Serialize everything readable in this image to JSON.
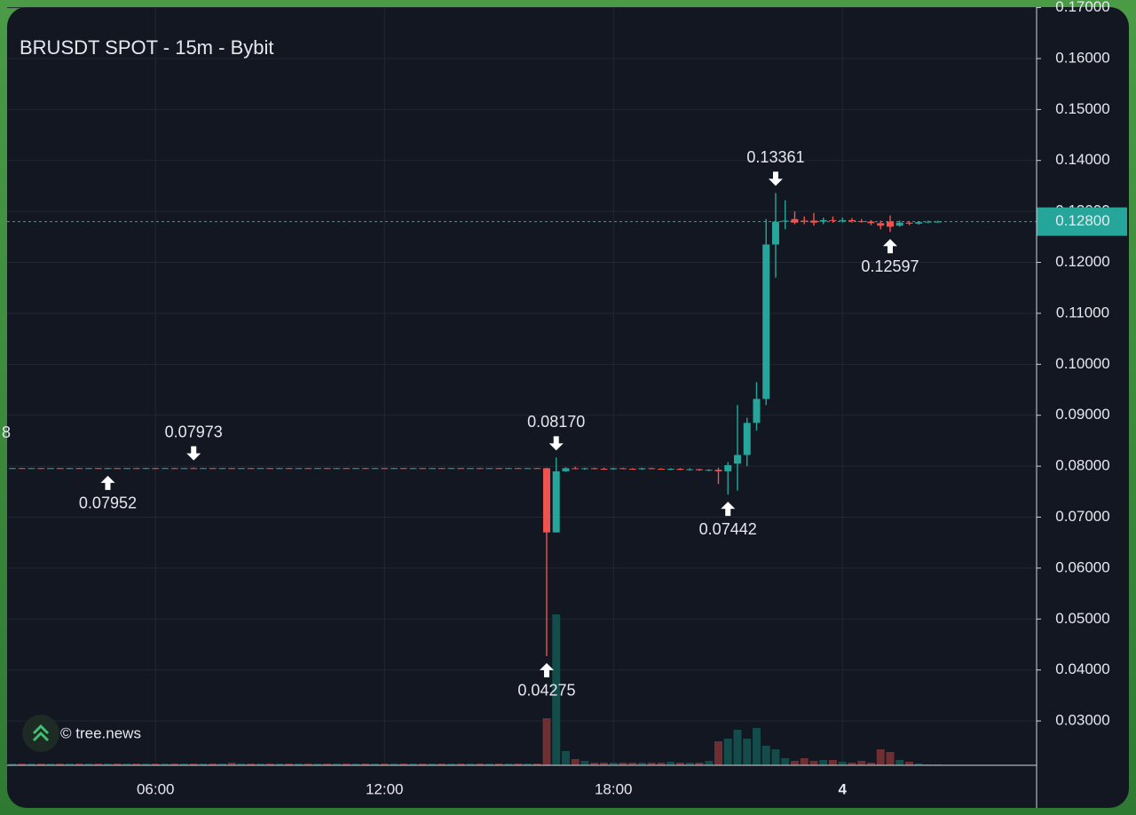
{
  "chart_data": {
    "type": "candlestick",
    "title": "BRUSDT SPOT - 15m - Bybit",
    "watermark": "© tree.news",
    "edge_label": "8",
    "up_color": "#26a69a",
    "down_color": "#ef5350",
    "volume_up_color": "#134c4a",
    "volume_down_color": "#6e2f33",
    "grid": true,
    "ylim": [
      0.0213,
      0.1701
    ],
    "yticks": [
      {
        "value": 0.03,
        "label": "0.03000"
      },
      {
        "value": 0.04,
        "label": "0.04000"
      },
      {
        "value": 0.05,
        "label": "0.05000"
      },
      {
        "value": 0.06,
        "label": "0.06000"
      },
      {
        "value": 0.07,
        "label": "0.07000"
      },
      {
        "value": 0.08,
        "label": "0.08000"
      },
      {
        "value": 0.09,
        "label": "0.09000"
      },
      {
        "value": 0.1,
        "label": "0.10000"
      },
      {
        "value": 0.11,
        "label": "0.11000"
      },
      {
        "value": 0.12,
        "label": "0.12000"
      },
      {
        "value": 0.13,
        "label": "0.13000"
      },
      {
        "value": 0.14,
        "label": "0.14000"
      },
      {
        "value": 0.15,
        "label": "0.15000"
      },
      {
        "value": 0.16,
        "label": "0.16000"
      },
      {
        "value": 0.17,
        "label": "0.17000"
      }
    ],
    "last_price": {
      "value": 0.128,
      "label": "0.12800",
      "color": "#26a69a"
    },
    "categories": [
      null,
      null,
      null,
      null,
      null,
      null,
      null,
      null,
      null,
      null,
      null,
      null,
      null,
      null,
      null,
      "06:00",
      null,
      null,
      null,
      null,
      null,
      null,
      null,
      null,
      null,
      null,
      null,
      null,
      null,
      null,
      null,
      null,
      null,
      null,
      null,
      null,
      null,
      null,
      null,
      "12:00",
      null,
      null,
      null,
      null,
      null,
      null,
      null,
      null,
      null,
      null,
      null,
      null,
      null,
      null,
      null,
      null,
      null,
      null,
      null,
      null,
      null,
      null,
      null,
      "18:00",
      null,
      null,
      null,
      null,
      null,
      null,
      null,
      null,
      null,
      null,
      null,
      null,
      null,
      null,
      null,
      null,
      null,
      null,
      null,
      null,
      null,
      null,
      null,
      "4",
      null,
      null,
      null,
      null,
      null,
      null,
      null,
      null,
      null,
      null
    ],
    "ohlc": [
      [
        0.0796,
        0.07966,
        0.07955,
        0.07962
      ],
      [
        0.07962,
        0.07966,
        0.07955,
        0.0796
      ],
      [
        0.0796,
        0.07966,
        0.07955,
        0.07962
      ],
      [
        0.07962,
        0.07966,
        0.07955,
        0.0796
      ],
      [
        0.0796,
        0.07966,
        0.07955,
        0.07962
      ],
      [
        0.07962,
        0.07966,
        0.07955,
        0.0796
      ],
      [
        0.0796,
        0.07966,
        0.07955,
        0.07962
      ],
      [
        0.07962,
        0.07966,
        0.07955,
        0.0796
      ],
      [
        0.0796,
        0.07966,
        0.07955,
        0.07962
      ],
      [
        0.07962,
        0.07966,
        0.07955,
        0.0796
      ],
      [
        0.0796,
        0.07966,
        0.07952,
        0.07962
      ],
      [
        0.07962,
        0.07966,
        0.07955,
        0.0796
      ],
      [
        0.0796,
        0.07966,
        0.07955,
        0.07962
      ],
      [
        0.07962,
        0.07966,
        0.07955,
        0.0796
      ],
      [
        0.0796,
        0.07966,
        0.07955,
        0.07962
      ],
      [
        0.07962,
        0.07966,
        0.07955,
        0.0796
      ],
      [
        0.0796,
        0.07966,
        0.07955,
        0.07962
      ],
      [
        0.07962,
        0.07966,
        0.07955,
        0.0796
      ],
      [
        0.0796,
        0.07966,
        0.07955,
        0.07962
      ],
      [
        0.07962,
        0.07973,
        0.07955,
        0.0796
      ],
      [
        0.0796,
        0.07966,
        0.07955,
        0.07962
      ],
      [
        0.07962,
        0.07966,
        0.07955,
        0.0796
      ],
      [
        0.0796,
        0.07966,
        0.07955,
        0.07962
      ],
      [
        0.07962,
        0.07966,
        0.07955,
        0.0796
      ],
      [
        0.0796,
        0.07966,
        0.07955,
        0.07962
      ],
      [
        0.07962,
        0.07966,
        0.07955,
        0.0796
      ],
      [
        0.0796,
        0.07966,
        0.07955,
        0.07962
      ],
      [
        0.07962,
        0.07966,
        0.07955,
        0.0796
      ],
      [
        0.0796,
        0.07966,
        0.07955,
        0.07962
      ],
      [
        0.07962,
        0.07966,
        0.07955,
        0.0796
      ],
      [
        0.0796,
        0.07966,
        0.07955,
        0.07962
      ],
      [
        0.07962,
        0.07966,
        0.07955,
        0.0796
      ],
      [
        0.0796,
        0.07966,
        0.07955,
        0.07962
      ],
      [
        0.07962,
        0.07966,
        0.07955,
        0.0796
      ],
      [
        0.0796,
        0.07966,
        0.07955,
        0.07962
      ],
      [
        0.07962,
        0.07966,
        0.07955,
        0.0796
      ],
      [
        0.0796,
        0.07966,
        0.07955,
        0.07962
      ],
      [
        0.07962,
        0.07966,
        0.07955,
        0.0796
      ],
      [
        0.0796,
        0.07966,
        0.07955,
        0.07962
      ],
      [
        0.07962,
        0.07966,
        0.07955,
        0.0796
      ],
      [
        0.0796,
        0.07966,
        0.07955,
        0.07962
      ],
      [
        0.07962,
        0.07966,
        0.07955,
        0.0796
      ],
      [
        0.0796,
        0.07966,
        0.07955,
        0.07962
      ],
      [
        0.07962,
        0.07966,
        0.07955,
        0.0796
      ],
      [
        0.0796,
        0.07966,
        0.07955,
        0.07962
      ],
      [
        0.07962,
        0.07966,
        0.07955,
        0.0796
      ],
      [
        0.0796,
        0.07966,
        0.07955,
        0.07962
      ],
      [
        0.07962,
        0.07966,
        0.07955,
        0.0796
      ],
      [
        0.0796,
        0.07966,
        0.07955,
        0.07962
      ],
      [
        0.07962,
        0.07966,
        0.07955,
        0.0796
      ],
      [
        0.0796,
        0.07966,
        0.07955,
        0.07962
      ],
      [
        0.07962,
        0.07966,
        0.07955,
        0.0796
      ],
      [
        0.0796,
        0.07966,
        0.07955,
        0.07962
      ],
      [
        0.07962,
        0.07966,
        0.07955,
        0.0796
      ],
      [
        0.0796,
        0.07966,
        0.07955,
        0.07962
      ],
      [
        0.07962,
        0.07966,
        0.07955,
        0.0796
      ],
      [
        0.0796,
        0.0797,
        0.04275,
        0.067
      ],
      [
        0.067,
        0.0817,
        0.067,
        0.079
      ],
      [
        0.079,
        0.0798,
        0.0789,
        0.0796
      ],
      [
        0.0796,
        0.0799,
        0.0794,
        0.0795
      ],
      [
        0.0795,
        0.0797,
        0.0793,
        0.0796
      ],
      [
        0.0796,
        0.0797,
        0.0794,
        0.0795
      ],
      [
        0.0795,
        0.0797,
        0.0793,
        0.0794
      ],
      [
        0.0794,
        0.0797,
        0.0793,
        0.0796
      ],
      [
        0.0796,
        0.0797,
        0.0794,
        0.0795
      ],
      [
        0.0795,
        0.0796,
        0.0793,
        0.0794
      ],
      [
        0.0794,
        0.0797,
        0.0793,
        0.0796
      ],
      [
        0.0796,
        0.0797,
        0.0794,
        0.0795
      ],
      [
        0.0795,
        0.0796,
        0.0793,
        0.0794
      ],
      [
        0.0794,
        0.0796,
        0.0792,
        0.0795
      ],
      [
        0.0795,
        0.0796,
        0.0792,
        0.0793
      ],
      [
        0.0793,
        0.0796,
        0.0791,
        0.0794
      ],
      [
        0.0794,
        0.0795,
        0.0791,
        0.0792
      ],
      [
        0.0792,
        0.0794,
        0.079,
        0.0793
      ],
      [
        0.0793,
        0.0797,
        0.0765,
        0.079
      ],
      [
        0.079,
        0.0808,
        0.07442,
        0.0802
      ],
      [
        0.0805,
        0.092,
        0.0752,
        0.0822
      ],
      [
        0.0822,
        0.0895,
        0.08,
        0.0885
      ],
      [
        0.0885,
        0.0965,
        0.087,
        0.0932
      ],
      [
        0.0932,
        0.1285,
        0.092,
        0.1235
      ],
      [
        0.1235,
        0.13361,
        0.117,
        0.128
      ],
      [
        0.128,
        0.1322,
        0.1265,
        0.1282
      ],
      [
        0.1285,
        0.13,
        0.1275,
        0.1278
      ],
      [
        0.1282,
        0.129,
        0.1275,
        0.128
      ],
      [
        0.1282,
        0.1297,
        0.1272,
        0.1278
      ],
      [
        0.128,
        0.1288,
        0.1275,
        0.1283
      ],
      [
        0.1283,
        0.129,
        0.1278,
        0.1282
      ],
      [
        0.1282,
        0.1288,
        0.1278,
        0.1283
      ],
      [
        0.1283,
        0.1287,
        0.1278,
        0.1281
      ],
      [
        0.1281,
        0.1285,
        0.1278,
        0.128
      ],
      [
        0.128,
        0.1283,
        0.1273,
        0.1277
      ],
      [
        0.1277,
        0.1282,
        0.1265,
        0.1272
      ],
      [
        0.128,
        0.1292,
        0.12597,
        0.127
      ],
      [
        0.1272,
        0.1282,
        0.127,
        0.1278
      ],
      [
        0.1278,
        0.1281,
        0.1273,
        0.1276
      ],
      [
        0.1276,
        0.128,
        0.1274,
        0.1279
      ],
      [
        0.1279,
        0.1282,
        0.1277,
        0.128
      ],
      [
        0.128,
        0.1282,
        0.1278,
        0.128
      ]
    ],
    "volume": [
      2,
      2,
      2,
      2,
      2,
      2,
      2,
      2,
      2,
      2,
      2,
      2,
      2,
      2,
      2,
      2,
      2,
      2,
      2,
      2,
      2,
      2,
      2,
      3,
      2,
      2,
      2,
      2,
      2,
      2,
      2,
      2,
      2,
      2,
      2,
      2,
      2,
      2,
      2,
      2,
      2,
      2,
      2,
      2,
      2,
      2,
      2,
      2,
      2,
      2,
      2,
      2,
      2,
      2,
      2,
      2,
      53,
      170,
      16,
      7,
      5,
      3,
      3,
      3,
      3,
      3,
      3,
      3,
      3,
      4,
      3,
      3,
      3,
      5,
      27,
      30,
      40,
      30,
      42,
      22,
      18,
      8,
      5,
      8,
      5,
      6,
      6,
      4,
      3,
      5,
      3,
      18,
      15,
      6,
      4,
      2,
      1,
      1
    ],
    "annotations": [
      {
        "index": 10,
        "side": "below",
        "label": "0.07952"
      },
      {
        "index": 19,
        "side": "above",
        "label": "0.07973"
      },
      {
        "index": 57,
        "side": "above",
        "label": "0.08170"
      },
      {
        "index": 56,
        "side": "below",
        "label": "0.04275"
      },
      {
        "index": 75,
        "side": "below",
        "label": "0.07442"
      },
      {
        "index": 80,
        "side": "above",
        "label": "0.13361"
      },
      {
        "index": 92,
        "side": "below",
        "label": "0.12597"
      }
    ]
  }
}
